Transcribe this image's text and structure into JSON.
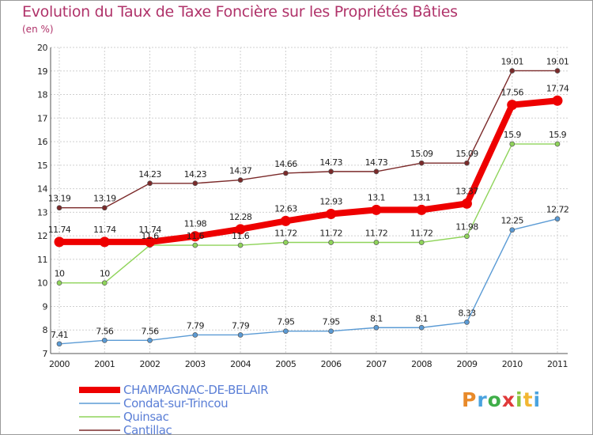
{
  "header": {
    "title": "Evolution du Taux de Taxe Foncière sur les Propriétés Bâties",
    "subtitle": "(en %)"
  },
  "logo": {
    "text": "Proxiti",
    "colors": [
      "#e88a2a",
      "#4aa3df",
      "#3fae49",
      "#e03a3a",
      "#8ac43f",
      "#f2b632",
      "#4aa3df"
    ]
  },
  "chart_data": {
    "type": "line",
    "x": [
      2000,
      2001,
      2002,
      2003,
      2004,
      2005,
      2006,
      2007,
      2008,
      2009,
      2010,
      2011
    ],
    "ylim": [
      7,
      20
    ],
    "yticks": [
      7,
      8,
      9,
      10,
      11,
      12,
      13,
      14,
      15,
      16,
      17,
      18,
      19,
      20
    ],
    "grid": true,
    "legend_position": "bottom-left",
    "series": [
      {
        "name": "CHAMPAGNAC-DE-BELAIR",
        "color": "#ee0000",
        "labels": [
          "11.74",
          "11.74",
          "11.74",
          "11.98",
          "12.28",
          "12.63",
          "12.93",
          "13.1",
          "13.1",
          "13.37",
          "17.56",
          "17.74"
        ],
        "values": [
          11.74,
          11.74,
          11.74,
          11.98,
          12.28,
          12.63,
          12.93,
          13.1,
          13.1,
          13.37,
          17.56,
          17.74
        ]
      },
      {
        "name": "Condat-sur-Trincou",
        "color": "#5b9bd5",
        "labels": [
          "7.41",
          "7.56",
          "7.56",
          "7.79",
          "7.79",
          "7.95",
          "7.95",
          "8.1",
          "8.1",
          "8.33",
          "12.25",
          "12.72"
        ],
        "values": [
          7.41,
          7.56,
          7.56,
          7.79,
          7.79,
          7.95,
          7.95,
          8.1,
          8.1,
          8.33,
          12.25,
          12.72
        ]
      },
      {
        "name": "Quinsac",
        "color": "#8fd45a",
        "labels": [
          "10",
          "10",
          "11.6",
          "11.6",
          "11.6",
          "11.72",
          "11.72",
          "11.72",
          "11.72",
          "11.98",
          "15.9",
          "15.9"
        ],
        "values": [
          10,
          10,
          11.6,
          11.6,
          11.6,
          11.72,
          11.72,
          11.72,
          11.72,
          11.98,
          15.9,
          15.9
        ]
      },
      {
        "name": "Cantillac",
        "color": "#7b2a2a",
        "labels": [
          "13.19",
          "13.19",
          "14.23",
          "14.23",
          "14.37",
          "14.66",
          "14.73",
          "14.73",
          "15.09",
          "15.09",
          "19.01",
          "19.01"
        ],
        "values": [
          13.19,
          13.19,
          14.23,
          14.23,
          14.37,
          14.66,
          14.73,
          14.73,
          15.09,
          15.09,
          19.01,
          19.01
        ]
      }
    ]
  }
}
